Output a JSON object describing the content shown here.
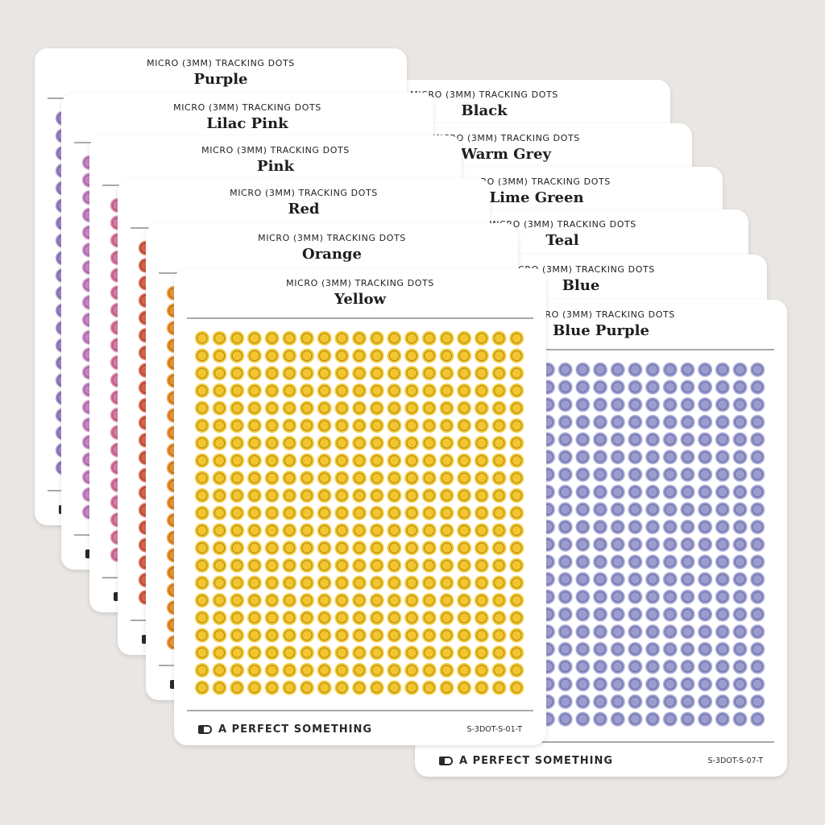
{
  "kicker": "MICRO (3MM) TRACKING DOTS",
  "brand": "A PERFECT SOMETHING",
  "background_color": "#e9e6e3",
  "sheets": [
    {
      "name": "Black",
      "fill": "#3a3a3a",
      "ring": "#1e1e1e",
      "edge": "#555555"
    },
    {
      "name": "Warm Grey",
      "fill": "#a79b92",
      "ring": "#7d716a",
      "edge": "#c2b8b0"
    },
    {
      "name": "Lime Green",
      "fill": "#a8c94c",
      "ring": "#7d9a30",
      "edge": "#c4dc80"
    },
    {
      "name": "Teal",
      "fill": "#3da9a1",
      "ring": "#26807a",
      "edge": "#7cc6c0"
    },
    {
      "name": "Blue",
      "fill": "#5590d2",
      "ring": "#3a6aa6",
      "edge": "#8ab2e0"
    },
    {
      "name": "Blue Purple",
      "code": "S-3DOT-S-07-T",
      "fill": "#9c9dcf",
      "ring": "#6f70a8",
      "edge": "#bdbde2"
    },
    {
      "name": "Purple",
      "fill": "#a289c8",
      "ring": "#75609d",
      "edge": "#c2b0de"
    },
    {
      "name": "Lilac Pink",
      "fill": "#c98ac6",
      "ring": "#9a5f97",
      "edge": "#e0b4dc"
    },
    {
      "name": "Pink",
      "fill": "#da7ca2",
      "ring": "#a9557a",
      "edge": "#eaa9c2"
    },
    {
      "name": "Red",
      "fill": "#d9654f",
      "ring": "#a8432f",
      "edge": "#e99a88"
    },
    {
      "name": "Orange",
      "fill": "#eb9535",
      "ring": "#b26a1c",
      "edge": "#f4bb76"
    },
    {
      "name": "Yellow",
      "code": "S-3DOT-S-01-T",
      "fill": "#f3c62f",
      "ring": "#b48f1c",
      "edge": "#f7d966"
    }
  ]
}
